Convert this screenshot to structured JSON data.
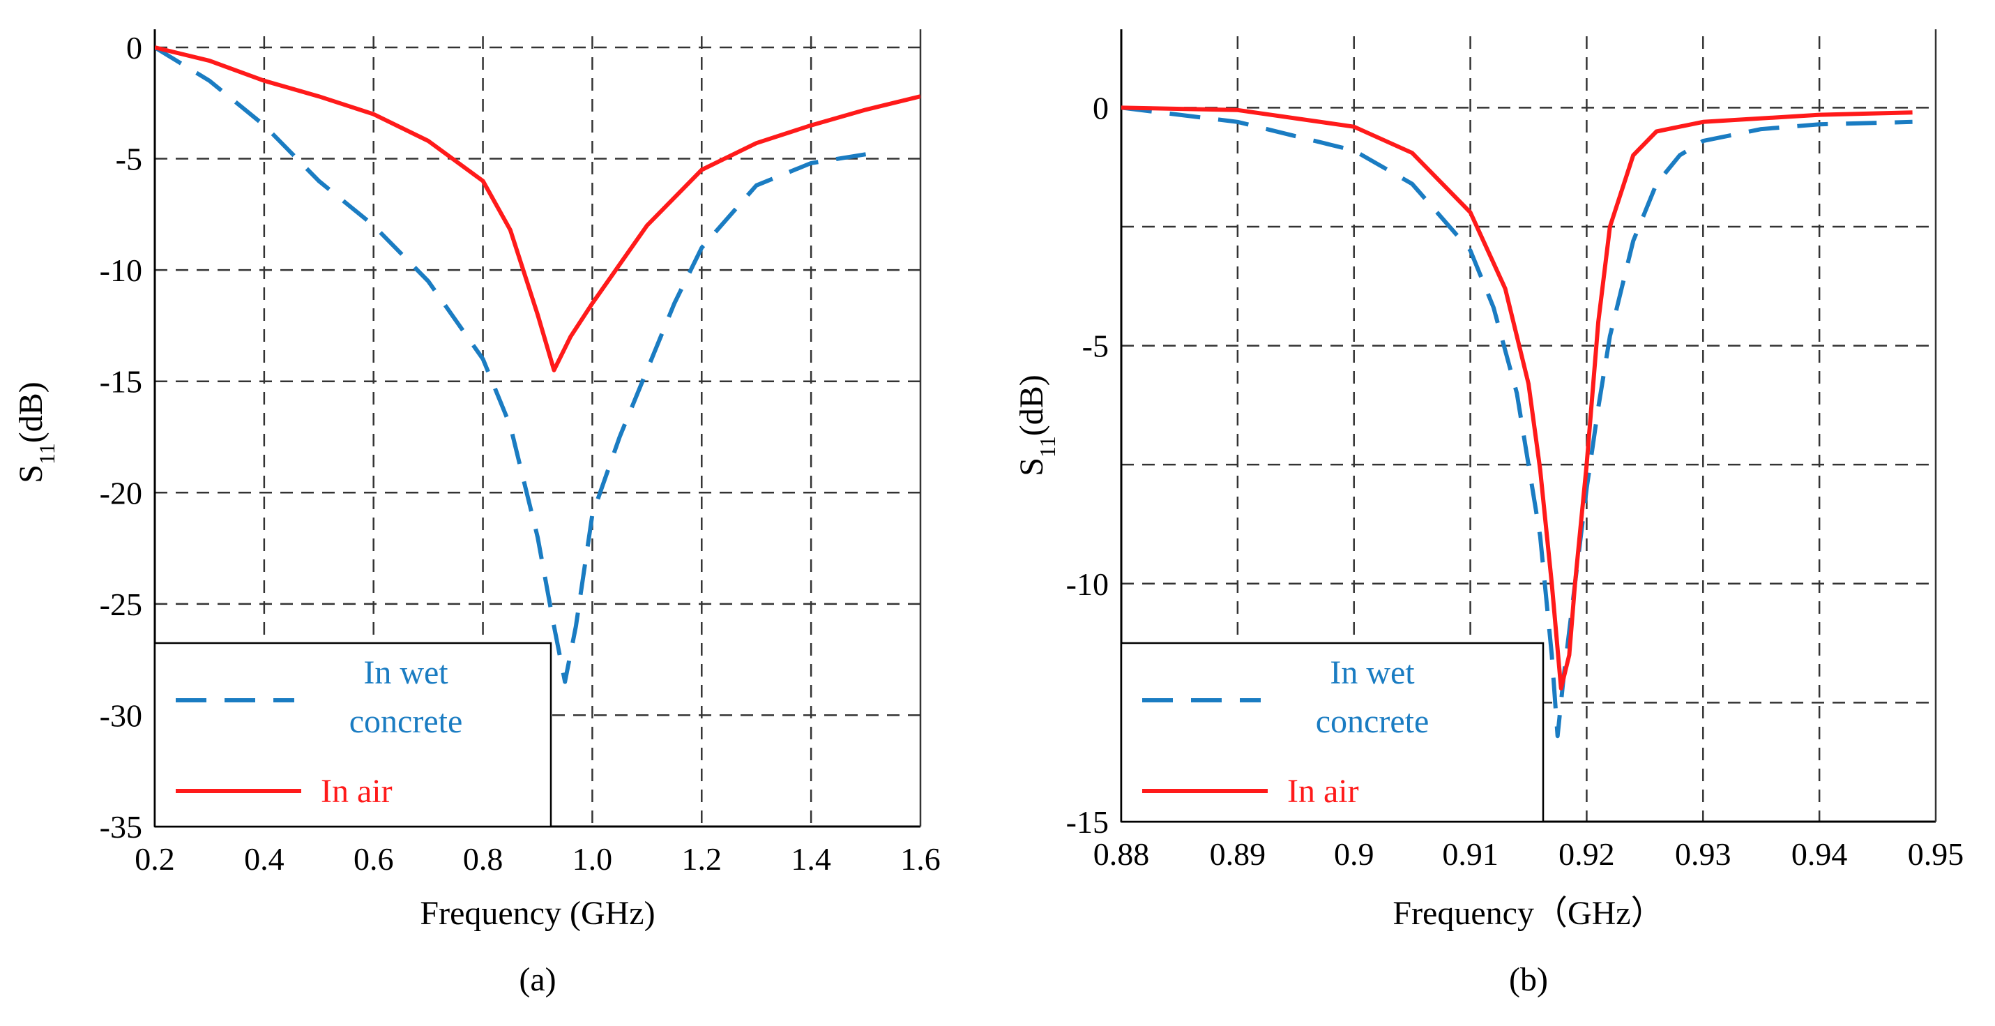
{
  "colors": {
    "wet": "#1a7cc2",
    "air": "#ff1a1a",
    "grid": "#333333",
    "axis": "#000000"
  },
  "chart_data": [
    {
      "panel_label": "(a)",
      "type": "line",
      "xlabel": "Frequency (GHz)",
      "ylabel": {
        "base": "S",
        "sub": "11",
        "rest": "(dB)"
      },
      "xlim": [
        0.2,
        1.6
      ],
      "ylim": [
        -35,
        0.5
      ],
      "xticks": [
        0.2,
        0.4,
        0.6,
        0.8,
        1.0,
        1.2,
        1.4,
        1.6
      ],
      "xtick_labels": [
        "0.2",
        "0.4",
        "0.6",
        "0.8",
        "1.0",
        "1.2",
        "1.4",
        "1.6"
      ],
      "yticks": [
        0,
        -5,
        -10,
        -15,
        -20,
        -25,
        -30,
        -35
      ],
      "ytick_labels": [
        "0",
        "-5",
        "-10",
        "-15",
        "-20",
        "-25",
        "-30",
        "-35"
      ],
      "grid": true,
      "legend": {
        "placement": "bottom-left",
        "labels": [
          "In wet",
          "concrete",
          "In air"
        ]
      },
      "series": [
        {
          "name": "In wet concrete",
          "style": "dashed",
          "color": "#1a7cc2",
          "x": [
            0.2,
            0.3,
            0.4,
            0.5,
            0.6,
            0.7,
            0.8,
            0.85,
            0.9,
            0.93,
            0.95,
            0.97,
            1.0,
            1.05,
            1.1,
            1.15,
            1.2,
            1.3,
            1.4,
            1.5
          ],
          "y": [
            0,
            -1.5,
            -3.5,
            -6.0,
            -8.0,
            -10.5,
            -14.0,
            -17.0,
            -22.0,
            -26.0,
            -28.5,
            -26.0,
            -21.0,
            -17.5,
            -14.5,
            -11.5,
            -9.0,
            -6.2,
            -5.2,
            -4.8
          ]
        },
        {
          "name": "In air",
          "style": "solid",
          "color": "#ff1a1a",
          "x": [
            0.2,
            0.3,
            0.4,
            0.5,
            0.6,
            0.7,
            0.8,
            0.85,
            0.9,
            0.93,
            0.96,
            1.0,
            1.1,
            1.2,
            1.3,
            1.4,
            1.5,
            1.6
          ],
          "y": [
            0,
            -0.6,
            -1.5,
            -2.2,
            -3.0,
            -4.2,
            -6.0,
            -8.2,
            -12.0,
            -14.5,
            -13.0,
            -11.5,
            -8.0,
            -5.5,
            -4.3,
            -3.5,
            -2.8,
            -2.2
          ]
        }
      ]
    },
    {
      "panel_label": "(b)",
      "type": "line",
      "xlabel": "Frequency（GHz）",
      "ylabel": {
        "base": "S",
        "sub": "11",
        "rest": "(dB)"
      },
      "xlim": [
        0.88,
        0.95
      ],
      "ylim": [
        -15,
        1.5
      ],
      "xticks": [
        0.88,
        0.89,
        0.9,
        0.91,
        0.92,
        0.93,
        0.94,
        0.95
      ],
      "xtick_labels": [
        "0.88",
        "0.89",
        "0.9",
        "0.91",
        "0.92",
        "0.93",
        "0.94",
        "0.95"
      ],
      "yticks": [
        0,
        -5,
        -10,
        -15
      ],
      "ytick_labels": [
        "0",
        "-5",
        "-10",
        "-15"
      ],
      "minor_grid_y": [
        -2.5,
        -7.5,
        -12.5
      ],
      "grid": true,
      "legend": {
        "placement": "bottom-left",
        "labels": [
          "In wet",
          "concrete",
          "In air"
        ]
      },
      "series": [
        {
          "name": "In wet concrete",
          "style": "dashed",
          "color": "#1a7cc2",
          "x": [
            0.88,
            0.89,
            0.9,
            0.905,
            0.91,
            0.912,
            0.914,
            0.916,
            0.917,
            0.9175,
            0.918,
            0.919,
            0.92,
            0.921,
            0.922,
            0.924,
            0.926,
            0.928,
            0.93,
            0.935,
            0.94,
            0.948
          ],
          "y": [
            0,
            -0.3,
            -0.9,
            -1.6,
            -3.0,
            -4.2,
            -6.0,
            -9.0,
            -11.5,
            -13.2,
            -12.0,
            -10.0,
            -8.0,
            -6.3,
            -4.8,
            -2.8,
            -1.6,
            -1.0,
            -0.7,
            -0.45,
            -0.35,
            -0.3
          ]
        },
        {
          "name": "In air",
          "style": "solid",
          "color": "#ff1a1a",
          "x": [
            0.88,
            0.89,
            0.9,
            0.905,
            0.91,
            0.913,
            0.915,
            0.916,
            0.917,
            0.9178,
            0.9185,
            0.919,
            0.92,
            0.921,
            0.922,
            0.924,
            0.926,
            0.93,
            0.94,
            0.948
          ],
          "y": [
            0,
            -0.05,
            -0.4,
            -0.95,
            -2.2,
            -3.8,
            -5.8,
            -7.6,
            -10.0,
            -12.2,
            -11.5,
            -10.0,
            -7.5,
            -4.5,
            -2.5,
            -1.0,
            -0.5,
            -0.3,
            -0.15,
            -0.1
          ]
        }
      ]
    }
  ]
}
